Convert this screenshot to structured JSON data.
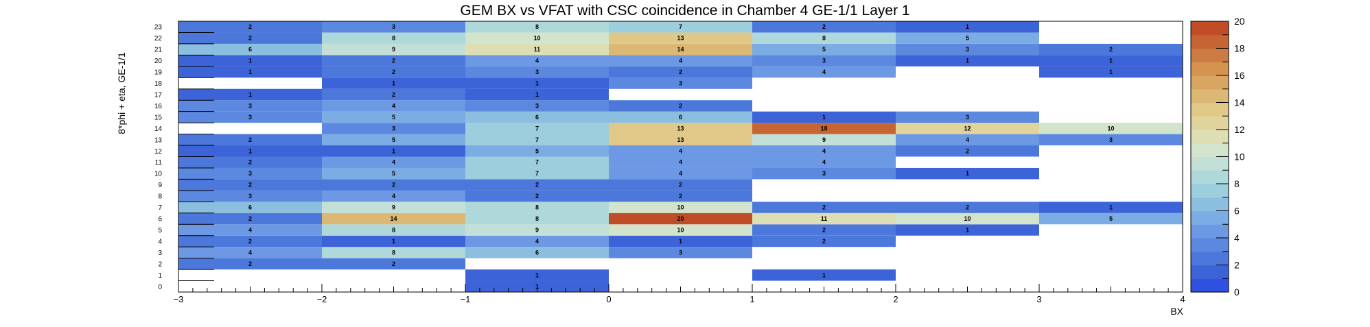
{
  "chart_data": {
    "type": "heatmap",
    "title": "GEM BX vs VFAT with CSC coincidence in Chamber 4 GE-1/1 Layer 1",
    "xlabel": "BX",
    "ylabel": "8*phi + eta, GE-1/1",
    "x_edges": [
      -3,
      -2,
      -1,
      0,
      1,
      2,
      3,
      4
    ],
    "xlim": [
      -3,
      4
    ],
    "ylim": [
      0,
      24
    ],
    "x_ticks": [
      "−3",
      "−2",
      "−1",
      "0",
      "1",
      "2",
      "3",
      "4"
    ],
    "y_ticks": [
      "0",
      "1",
      "2",
      "3",
      "4",
      "5",
      "6",
      "7",
      "8",
      "9",
      "10",
      "11",
      "12",
      "13",
      "14",
      "15",
      "16",
      "17",
      "18",
      "19",
      "20",
      "21",
      "22",
      "23"
    ],
    "zlim": [
      0,
      20
    ],
    "z_ticks": [
      "0",
      "2",
      "4",
      "6",
      "8",
      "10",
      "12",
      "14",
      "16",
      "18",
      "20"
    ],
    "colors": [
      "#3050e0",
      "#3c64d8",
      "#4c78dc",
      "#5c88e0",
      "#6c98e4",
      "#7cace4",
      "#8cbee0",
      "#9ccede",
      "#aed8da",
      "#c2e0d8",
      "#d2e4cc",
      "#dedeb4",
      "#e0d49c",
      "#e0c888",
      "#dcb874",
      "#d8a662",
      "#d49450",
      "#cc7c42",
      "#c66434",
      "#c04c28"
    ],
    "cells": [
      {
        "bx": -1,
        "y": 0,
        "value": 1
      },
      {
        "bx": -1,
        "y": 1,
        "value": 1
      },
      {
        "bx": 1,
        "y": 1,
        "value": 1
      },
      {
        "bx": -3,
        "y": 2,
        "value": 2
      },
      {
        "bx": -2,
        "y": 2,
        "value": 2
      },
      {
        "bx": -3,
        "y": 3,
        "value": 4
      },
      {
        "bx": -2,
        "y": 3,
        "value": 8
      },
      {
        "bx": -1,
        "y": 3,
        "value": 6
      },
      {
        "bx": 0,
        "y": 3,
        "value": 3
      },
      {
        "bx": -3,
        "y": 4,
        "value": 2
      },
      {
        "bx": -2,
        "y": 4,
        "value": 1
      },
      {
        "bx": -1,
        "y": 4,
        "value": 4
      },
      {
        "bx": 0,
        "y": 4,
        "value": 1
      },
      {
        "bx": 1,
        "y": 4,
        "value": 2
      },
      {
        "bx": -3,
        "y": 5,
        "value": 4
      },
      {
        "bx": -2,
        "y": 5,
        "value": 8
      },
      {
        "bx": -1,
        "y": 5,
        "value": 9
      },
      {
        "bx": 0,
        "y": 5,
        "value": 10
      },
      {
        "bx": 1,
        "y": 5,
        "value": 2
      },
      {
        "bx": 2,
        "y": 5,
        "value": 1
      },
      {
        "bx": -3,
        "y": 6,
        "value": 2
      },
      {
        "bx": -2,
        "y": 6,
        "value": 14
      },
      {
        "bx": -1,
        "y": 6,
        "value": 8
      },
      {
        "bx": 0,
        "y": 6,
        "value": 20
      },
      {
        "bx": 1,
        "y": 6,
        "value": 11
      },
      {
        "bx": 2,
        "y": 6,
        "value": 10
      },
      {
        "bx": 3,
        "y": 6,
        "value": 5
      },
      {
        "bx": -3,
        "y": 7,
        "value": 6
      },
      {
        "bx": -2,
        "y": 7,
        "value": 9
      },
      {
        "bx": -1,
        "y": 7,
        "value": 8
      },
      {
        "bx": 0,
        "y": 7,
        "value": 10
      },
      {
        "bx": 1,
        "y": 7,
        "value": 2
      },
      {
        "bx": 2,
        "y": 7,
        "value": 2
      },
      {
        "bx": 3,
        "y": 7,
        "value": 1
      },
      {
        "bx": -3,
        "y": 8,
        "value": 3
      },
      {
        "bx": -2,
        "y": 8,
        "value": 4
      },
      {
        "bx": -1,
        "y": 8,
        "value": 2
      },
      {
        "bx": 0,
        "y": 8,
        "value": 2
      },
      {
        "bx": -3,
        "y": 9,
        "value": 2
      },
      {
        "bx": -2,
        "y": 9,
        "value": 2
      },
      {
        "bx": -1,
        "y": 9,
        "value": 2
      },
      {
        "bx": 0,
        "y": 9,
        "value": 2
      },
      {
        "bx": -3,
        "y": 10,
        "value": 3
      },
      {
        "bx": -2,
        "y": 10,
        "value": 5
      },
      {
        "bx": -1,
        "y": 10,
        "value": 7
      },
      {
        "bx": 0,
        "y": 10,
        "value": 4
      },
      {
        "bx": 1,
        "y": 10,
        "value": 3
      },
      {
        "bx": 2,
        "y": 10,
        "value": 1
      },
      {
        "bx": -3,
        "y": 11,
        "value": 2
      },
      {
        "bx": -2,
        "y": 11,
        "value": 4
      },
      {
        "bx": -1,
        "y": 11,
        "value": 7
      },
      {
        "bx": 0,
        "y": 11,
        "value": 4
      },
      {
        "bx": 1,
        "y": 11,
        "value": 4
      },
      {
        "bx": -3,
        "y": 12,
        "value": 1
      },
      {
        "bx": -2,
        "y": 12,
        "value": 1
      },
      {
        "bx": -1,
        "y": 12,
        "value": 5
      },
      {
        "bx": 0,
        "y": 12,
        "value": 4
      },
      {
        "bx": 1,
        "y": 12,
        "value": 4
      },
      {
        "bx": 2,
        "y": 12,
        "value": 2
      },
      {
        "bx": -3,
        "y": 13,
        "value": 2
      },
      {
        "bx": -2,
        "y": 13,
        "value": 5
      },
      {
        "bx": -1,
        "y": 13,
        "value": 7
      },
      {
        "bx": 0,
        "y": 13,
        "value": 13
      },
      {
        "bx": 1,
        "y": 13,
        "value": 9
      },
      {
        "bx": 2,
        "y": 13,
        "value": 4
      },
      {
        "bx": 3,
        "y": 13,
        "value": 3
      },
      {
        "bx": -2,
        "y": 14,
        "value": 3
      },
      {
        "bx": -1,
        "y": 14,
        "value": 7
      },
      {
        "bx": 0,
        "y": 14,
        "value": 13
      },
      {
        "bx": 1,
        "y": 14,
        "value": 18
      },
      {
        "bx": 2,
        "y": 14,
        "value": 12
      },
      {
        "bx": 3,
        "y": 14,
        "value": 10
      },
      {
        "bx": -3,
        "y": 15,
        "value": 3
      },
      {
        "bx": -2,
        "y": 15,
        "value": 5
      },
      {
        "bx": -1,
        "y": 15,
        "value": 6
      },
      {
        "bx": 0,
        "y": 15,
        "value": 6
      },
      {
        "bx": 1,
        "y": 15,
        "value": 1
      },
      {
        "bx": 2,
        "y": 15,
        "value": 3
      },
      {
        "bx": -3,
        "y": 16,
        "value": 3
      },
      {
        "bx": -2,
        "y": 16,
        "value": 4
      },
      {
        "bx": -1,
        "y": 16,
        "value": 3
      },
      {
        "bx": 0,
        "y": 16,
        "value": 2
      },
      {
        "bx": -3,
        "y": 17,
        "value": 1
      },
      {
        "bx": -2,
        "y": 17,
        "value": 2
      },
      {
        "bx": -1,
        "y": 17,
        "value": 1
      },
      {
        "bx": -2,
        "y": 18,
        "value": 1
      },
      {
        "bx": -1,
        "y": 18,
        "value": 1
      },
      {
        "bx": 0,
        "y": 18,
        "value": 3
      },
      {
        "bx": -3,
        "y": 19,
        "value": 1
      },
      {
        "bx": -2,
        "y": 19,
        "value": 2
      },
      {
        "bx": -1,
        "y": 19,
        "value": 3
      },
      {
        "bx": 0,
        "y": 19,
        "value": 2
      },
      {
        "bx": 1,
        "y": 19,
        "value": 4
      },
      {
        "bx": 3,
        "y": 19,
        "value": 1
      },
      {
        "bx": -3,
        "y": 20,
        "value": 1
      },
      {
        "bx": -2,
        "y": 20,
        "value": 2
      },
      {
        "bx": -1,
        "y": 20,
        "value": 4
      },
      {
        "bx": 0,
        "y": 20,
        "value": 4
      },
      {
        "bx": 1,
        "y": 20,
        "value": 3
      },
      {
        "bx": 2,
        "y": 20,
        "value": 1
      },
      {
        "bx": 3,
        "y": 20,
        "value": 1
      },
      {
        "bx": -3,
        "y": 21,
        "value": 6
      },
      {
        "bx": -2,
        "y": 21,
        "value": 9
      },
      {
        "bx": -1,
        "y": 21,
        "value": 11
      },
      {
        "bx": 0,
        "y": 21,
        "value": 14
      },
      {
        "bx": 1,
        "y": 21,
        "value": 5
      },
      {
        "bx": 2,
        "y": 21,
        "value": 3
      },
      {
        "bx": 3,
        "y": 21,
        "value": 2
      },
      {
        "bx": -3,
        "y": 22,
        "value": 2
      },
      {
        "bx": -2,
        "y": 22,
        "value": 8
      },
      {
        "bx": -1,
        "y": 22,
        "value": 10
      },
      {
        "bx": 0,
        "y": 22,
        "value": 13
      },
      {
        "bx": 1,
        "y": 22,
        "value": 8
      },
      {
        "bx": 2,
        "y": 22,
        "value": 5
      },
      {
        "bx": -3,
        "y": 23,
        "value": 2
      },
      {
        "bx": -2,
        "y": 23,
        "value": 3
      },
      {
        "bx": -1,
        "y": 23,
        "value": 8
      },
      {
        "bx": 0,
        "y": 23,
        "value": 7
      },
      {
        "bx": 1,
        "y": 23,
        "value": 2
      },
      {
        "bx": 2,
        "y": 23,
        "value": 1
      }
    ]
  }
}
